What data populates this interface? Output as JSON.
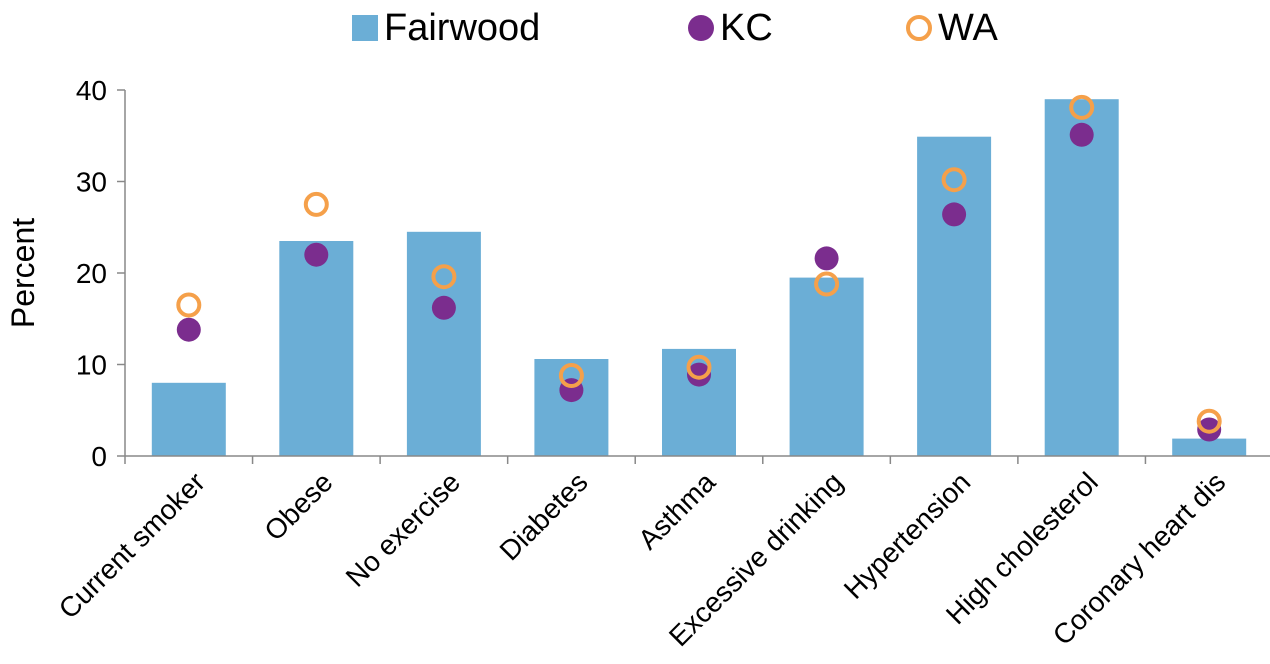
{
  "chart_data": {
    "type": "bar",
    "title": "",
    "xlabel": "",
    "ylabel": "Percent",
    "ylim": [
      0,
      40
    ],
    "yticks": [
      0,
      10,
      20,
      30,
      40
    ],
    "grid": false,
    "legend_position": "top",
    "categories": [
      "Current smoker",
      "Obese",
      "No exercise",
      "Diabetes",
      "Asthma",
      "Excessive drinking",
      "Hypertension",
      "High cholesterol",
      "Coronary heart dis"
    ],
    "series": [
      {
        "name": "Fairwood",
        "type": "bar",
        "color": "#6baed6",
        "values": [
          8.0,
          23.5,
          24.5,
          10.6,
          11.7,
          19.5,
          34.9,
          39.0,
          1.9
        ]
      },
      {
        "name": "KC",
        "type": "marker-filled",
        "color": "#7b2d8e",
        "values": [
          13.8,
          22.0,
          16.2,
          7.2,
          8.9,
          21.6,
          26.4,
          35.1,
          2.9
        ]
      },
      {
        "name": "WA",
        "type": "marker-open",
        "color": "#f5a04a",
        "values": [
          16.5,
          27.5,
          19.6,
          8.8,
          9.7,
          18.8,
          30.2,
          38.1,
          3.8
        ]
      }
    ]
  }
}
